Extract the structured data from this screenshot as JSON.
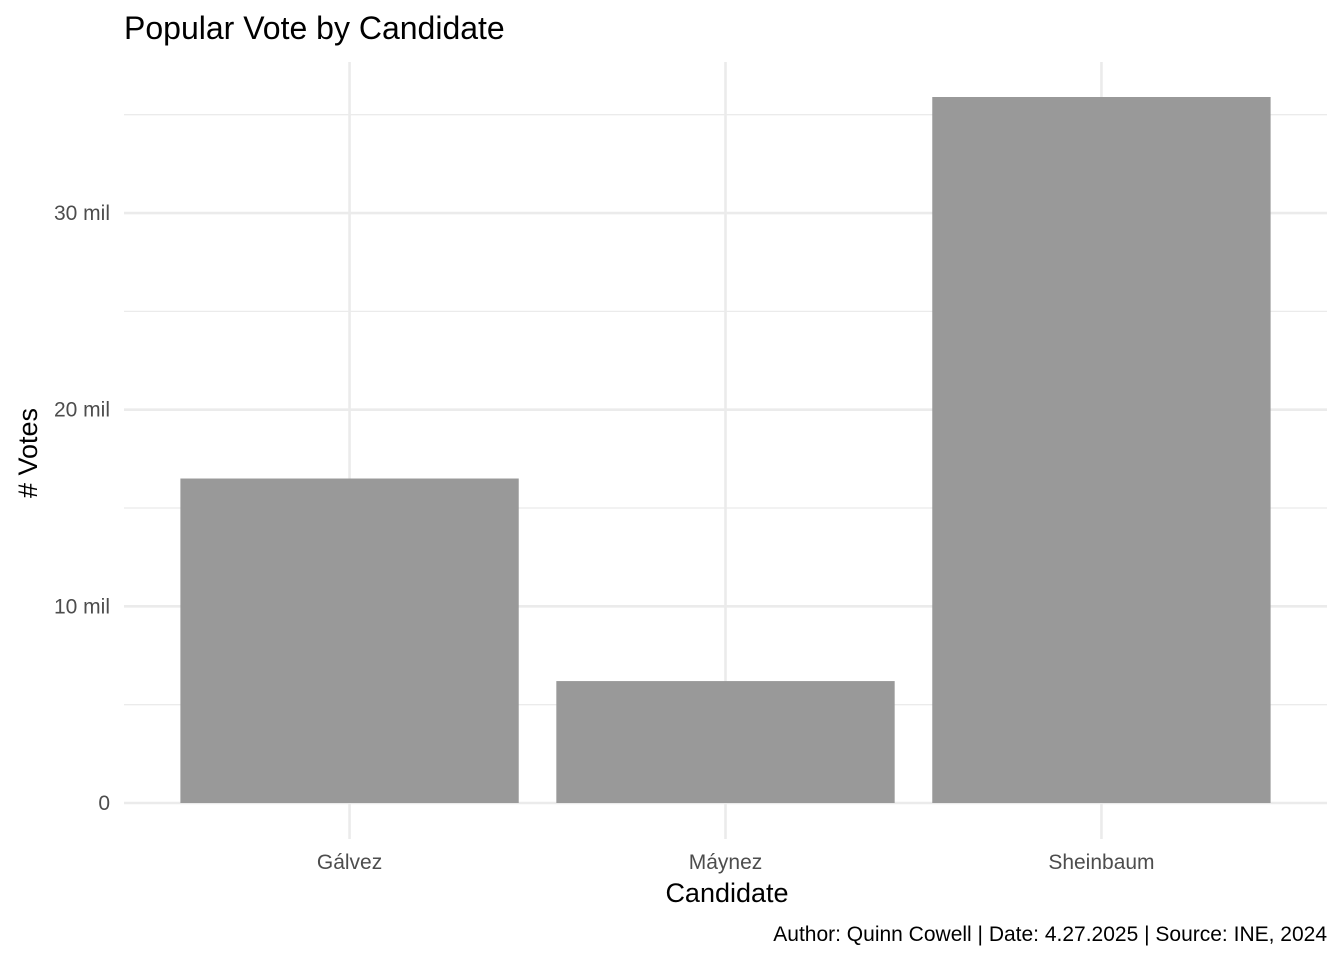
{
  "chart_data": {
    "type": "bar",
    "title": "Popular Vote by Candidate",
    "xlabel": "Candidate",
    "ylabel": "# Votes",
    "caption": "Author: Quinn Cowell | Date: 4.27.2025 | Source: INE, 2024",
    "categories": [
      "Gálvez",
      "Máynez",
      "Sheinbaum"
    ],
    "values": [
      16500000,
      6200000,
      35900000
    ],
    "ylim": [
      0,
      35900000
    ],
    "yticks": [
      0,
      10000000,
      20000000,
      30000000
    ],
    "ytick_labels": [
      "0",
      "10 mil",
      "20 mil",
      "30 mil"
    ],
    "y_minor_ticks": [
      5000000,
      15000000,
      25000000,
      35000000
    ],
    "grid": true,
    "legend": "none",
    "bar_color": "#999999",
    "grid_color": "#ebebeb"
  }
}
